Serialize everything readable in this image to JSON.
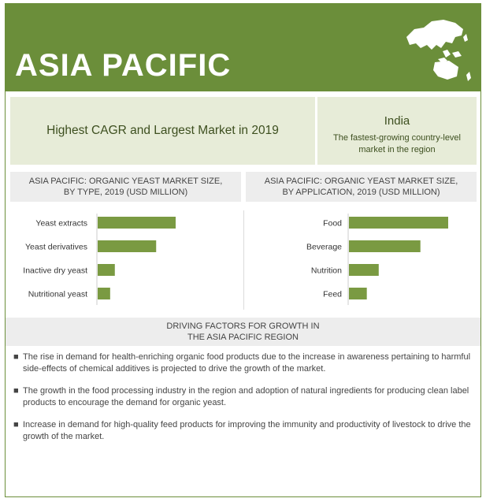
{
  "header": {
    "title": "ASIA PACIFIC"
  },
  "highlight": {
    "text": "Highest CAGR and Largest Market in 2019"
  },
  "india": {
    "heading": "India",
    "subtitle": "The fastest-growing country-level market in the region"
  },
  "colors": {
    "header_bg": "#6b8e3a",
    "bar": "#7a9a42",
    "box_bg": "#e7ecd8",
    "grey_bg": "#ededed"
  },
  "chart_data": [
    {
      "type": "bar",
      "orientation": "horizontal",
      "title": "ASIA PACIFIC: ORGANIC YEAST MARKET SIZE, BY TYPE, 2019 (USD MILLION)",
      "title_lines": [
        "ASIA PACIFIC: ORGANIC YEAST MARKET SIZE,",
        "BY TYPE, 2019 (USD MILLION)"
      ],
      "categories": [
        "Yeast extracts",
        "Yeast derivatives",
        "Inactive dry yeast",
        "Nutritional yeast"
      ],
      "values": [
        100,
        75,
        22,
        16
      ],
      "xlim": [
        0,
        100
      ]
    },
    {
      "type": "bar",
      "orientation": "horizontal",
      "title": "ASIA PACIFIC: ORGANIC YEAST MARKET SIZE, BY APPLICATION, 2019 (USD MILLION)",
      "title_lines": [
        "ASIA PACIFIC: ORGANIC YEAST MARKET SIZE,",
        "BY APPLICATION, 2019 (USD MILLION)"
      ],
      "categories": [
        "Food",
        "Beverage",
        "Nutrition",
        "Feed"
      ],
      "values": [
        100,
        72,
        30,
        18
      ],
      "xlim": [
        0,
        100
      ]
    }
  ],
  "drivers": {
    "title_lines": [
      "DRIVING FACTORS FOR GROWTH IN",
      "THE ASIA PACIFIC REGION"
    ],
    "items": [
      "The rise in demand for health-enriching organic food products due to the increase in awareness pertaining to harmful side-effects of chemical additives is projected to drive the growth of the market.",
      "The growth in the food processing industry in the region and adoption of natural ingredients for producing clean label products to encourage the demand for organic yeast.",
      "Increase in demand for high-quality feed products for improving the immunity and productivity of livestock to drive the growth of the market."
    ]
  }
}
